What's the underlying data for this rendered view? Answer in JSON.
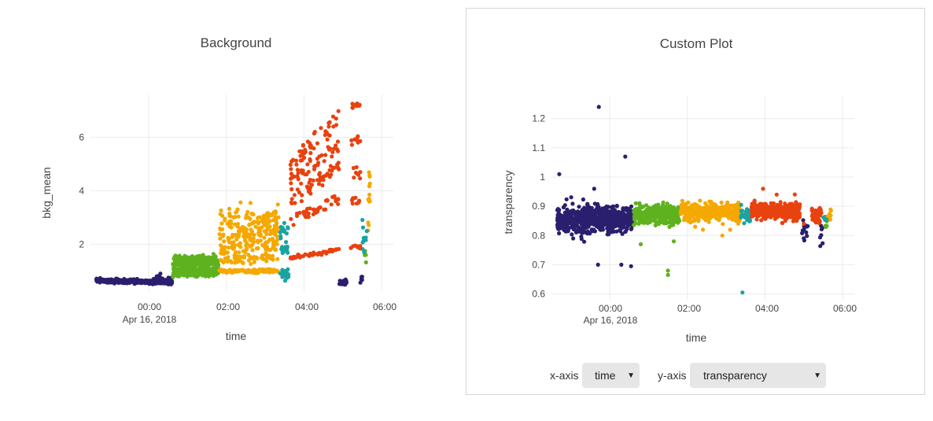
{
  "left_chart": {
    "title": "Background",
    "xlabel": "time",
    "ylabel": "bkg_mean",
    "xtick_labels": [
      "00:00",
      "02:00",
      "04:00",
      "06:00"
    ],
    "xtick_sublabel": "Apr 16, 2018"
  },
  "right_panel": {
    "title": "Custom Plot",
    "xlabel": "time",
    "ylabel": "transparency",
    "xtick_labels": [
      "00:00",
      "02:00",
      "04:00",
      "06:00"
    ],
    "xtick_sublabel": "Apr 16, 2018",
    "controls": {
      "x_label": "x-axis",
      "x_value": "time",
      "y_label": "y-axis",
      "y_value": "transparency"
    }
  },
  "chart_data": [
    {
      "type": "scatter",
      "title": "Background",
      "xlabel": "time",
      "ylabel": "bkg_mean",
      "x_unit": "hours since 2018-04-16 00:00",
      "xlim": [
        -1.5,
        6.3
      ],
      "ylim": [
        0.25,
        7.6
      ],
      "yticks": [
        2,
        4,
        6
      ],
      "grid": true,
      "legend": "none",
      "series": [
        {
          "color": "#2a1f6e",
          "bands": [
            {
              "x": [
                -1.35,
                0.6
              ],
              "y": [
                0.65,
                0.57
              ],
              "n": 420,
              "sd": 0.035
            },
            {
              "x": [
                0.1,
                0.6
              ],
              "y": [
                0.74,
                0.74
              ],
              "n": 20,
              "sd": 0.05
            },
            {
              "x": [
                4.9,
                5.1
              ],
              "y": [
                0.6,
                0.6
              ],
              "n": 12,
              "sd": 0.1
            },
            {
              "x": [
                5.45,
                5.5
              ],
              "y": [
                0.65,
                0.65
              ],
              "n": 6,
              "sd": 0.12
            }
          ]
        },
        {
          "color": "#5fb21f",
          "bands": [
            {
              "x": [
                0.62,
                1.8
              ],
              "y": [
                1.45,
                1.5
              ],
              "n": 120,
              "sd": 0.05
            },
            {
              "x": [
                0.62,
                1.8
              ],
              "y": [
                1.25,
                1.3
              ],
              "n": 120,
              "sd": 0.05
            },
            {
              "x": [
                0.62,
                1.8
              ],
              "y": [
                1.05,
                1.05
              ],
              "n": 130,
              "sd": 0.05
            },
            {
              "x": [
                0.62,
                1.8
              ],
              "y": [
                0.88,
                0.88
              ],
              "n": 110,
              "sd": 0.04
            },
            {
              "x": [
                5.55,
                5.6
              ],
              "y": [
                1.6,
                1.6
              ],
              "n": 5,
              "sd": 0.2
            }
          ]
        },
        {
          "color": "#f5a800",
          "bands": [
            {
              "x": [
                1.82,
                3.35
              ],
              "y": [
                1.0,
                1.0
              ],
              "n": 140,
              "sd": 0.03
            },
            {
              "x": [
                1.82,
                3.35
              ],
              "y": [
                1.45,
                1.55
              ],
              "n": 60,
              "sd": 0.1
            },
            {
              "x": [
                1.82,
                3.35
              ],
              "y": [
                1.8,
                2.0
              ],
              "n": 60,
              "sd": 0.12
            },
            {
              "x": [
                1.82,
                3.35
              ],
              "y": [
                2.2,
                2.4
              ],
              "n": 60,
              "sd": 0.15
            },
            {
              "x": [
                1.82,
                3.35
              ],
              "y": [
                2.6,
                2.9
              ],
              "n": 60,
              "sd": 0.2
            },
            {
              "x": [
                1.82,
                3.35
              ],
              "y": [
                3.0,
                3.2
              ],
              "n": 50,
              "sd": 0.2
            },
            {
              "x": [
                5.65,
                5.7
              ],
              "y": [
                3.0,
                3.8
              ],
              "n": 14,
              "sd": 0.6
            }
          ]
        },
        {
          "color": "#1aa3a1",
          "bands": [
            {
              "x": [
                3.38,
                3.6
              ],
              "y": [
                0.85,
                0.85
              ],
              "n": 20,
              "sd": 0.12
            },
            {
              "x": [
                3.38,
                3.6
              ],
              "y": [
                1.85,
                1.9
              ],
              "n": 15,
              "sd": 0.15
            },
            {
              "x": [
                3.38,
                3.6
              ],
              "y": [
                2.45,
                2.55
              ],
              "n": 15,
              "sd": 0.12
            },
            {
              "x": [
                5.5,
                5.62
              ],
              "y": [
                2.0,
                2.6
              ],
              "n": 12,
              "sd": 0.3
            }
          ]
        },
        {
          "color": "#e8420f",
          "bands": [
            {
              "x": [
                3.65,
                4.9
              ],
              "y": [
                1.5,
                1.8
              ],
              "n": 50,
              "sd": 0.03
            },
            {
              "x": [
                3.65,
                4.9
              ],
              "y": [
                2.9,
                3.7
              ],
              "n": 40,
              "sd": 0.12
            },
            {
              "x": [
                3.65,
                4.9
              ],
              "y": [
                3.6,
                4.9
              ],
              "n": 45,
              "sd": 0.15
            },
            {
              "x": [
                3.65,
                4.9
              ],
              "y": [
                4.3,
                5.7
              ],
              "n": 45,
              "sd": 0.15
            },
            {
              "x": [
                3.65,
                4.9
              ],
              "y": [
                5.0,
                6.7
              ],
              "n": 45,
              "sd": 0.15
            },
            {
              "x": [
                5.2,
                5.45
              ],
              "y": [
                1.9,
                1.9
              ],
              "n": 8,
              "sd": 0.05
            },
            {
              "x": [
                5.2,
                5.45
              ],
              "y": [
                3.6,
                3.6
              ],
              "n": 8,
              "sd": 0.1
            },
            {
              "x": [
                5.2,
                5.45
              ],
              "y": [
                4.6,
                4.6
              ],
              "n": 8,
              "sd": 0.1
            },
            {
              "x": [
                5.2,
                5.45
              ],
              "y": [
                5.9,
                5.9
              ],
              "n": 8,
              "sd": 0.1
            },
            {
              "x": [
                5.2,
                5.45
              ],
              "y": [
                7.2,
                7.2
              ],
              "n": 12,
              "sd": 0.06
            }
          ]
        }
      ]
    },
    {
      "type": "scatter",
      "title": "Custom Plot",
      "xlabel": "time",
      "ylabel": "transparency",
      "x_unit": "hours since 2018-04-16 00:00",
      "xlim": [
        -1.5,
        6.3
      ],
      "ylim": [
        0.58,
        1.28
      ],
      "yticks": [
        0.6,
        0.7,
        0.8,
        0.9,
        1,
        1.1,
        1.2
      ],
      "ytick_labels": [
        "0.6",
        "0.7",
        "0.8",
        "0.9",
        "1",
        "1.1",
        "1.2"
      ],
      "grid": true,
      "legend": "none",
      "series": [
        {
          "color": "#2a1f6e",
          "bands": [
            {
              "x": [
                -1.35,
                0.6
              ],
              "y": [
                0.85,
                0.86
              ],
              "n": 700,
              "sd": 0.022
            },
            {
              "x": [
                4.95,
                5.1
              ],
              "y": [
                0.82,
                0.82
              ],
              "n": 15,
              "sd": 0.02
            },
            {
              "x": [
                5.4,
                5.5
              ],
              "y": [
                0.8,
                0.8
              ],
              "n": 8,
              "sd": 0.025
            }
          ],
          "extra": [
            [
              -1.3,
              1.01
            ],
            [
              -0.28,
              1.24
            ],
            [
              0.4,
              1.07
            ],
            [
              -0.3,
              0.7
            ],
            [
              0.55,
              0.695
            ],
            [
              0.3,
              0.7
            ],
            [
              -0.4,
              0.96
            ]
          ]
        },
        {
          "color": "#5fb21f",
          "bands": [
            {
              "x": [
                0.62,
                1.8
              ],
              "y": [
                0.87,
                0.87
              ],
              "n": 330,
              "sd": 0.015
            },
            {
              "x": [
                5.55,
                5.6
              ],
              "y": [
                0.845,
                0.845
              ],
              "n": 6,
              "sd": 0.01
            }
          ],
          "extra": [
            [
              1.5,
              0.68
            ],
            [
              1.5,
              0.665
            ],
            [
              0.8,
              0.77
            ],
            [
              1.65,
              0.78
            ]
          ]
        },
        {
          "color": "#f5a800",
          "bands": [
            {
              "x": [
                1.82,
                3.35
              ],
              "y": [
                0.88,
                0.88
              ],
              "n": 330,
              "sd": 0.014
            },
            {
              "x": [
                5.62,
                5.72
              ],
              "y": [
                0.86,
                0.86
              ],
              "n": 10,
              "sd": 0.012
            }
          ],
          "extra": [
            [
              2.2,
              0.83
            ],
            [
              2.4,
              0.82
            ],
            [
              2.9,
              0.8
            ],
            [
              3.1,
              0.82
            ]
          ]
        },
        {
          "color": "#1aa3a1",
          "bands": [
            {
              "x": [
                3.38,
                3.62
              ],
              "y": [
                0.87,
                0.87
              ],
              "n": 40,
              "sd": 0.014
            },
            {
              "x": [
                5.5,
                5.6
              ],
              "y": [
                0.85,
                0.85
              ],
              "n": 5,
              "sd": 0.01
            }
          ],
          "extra": [
            [
              3.42,
              0.605
            ]
          ]
        },
        {
          "color": "#e8420f",
          "bands": [
            {
              "x": [
                3.65,
                4.9
              ],
              "y": [
                0.885,
                0.88
              ],
              "n": 330,
              "sd": 0.014
            },
            {
              "x": [
                5.2,
                5.45
              ],
              "y": [
                0.87,
                0.87
              ],
              "n": 60,
              "sd": 0.012
            }
          ],
          "extra": [
            [
              3.95,
              0.96
            ],
            [
              4.3,
              0.94
            ],
            [
              5.0,
              0.84
            ]
          ]
        }
      ]
    }
  ]
}
